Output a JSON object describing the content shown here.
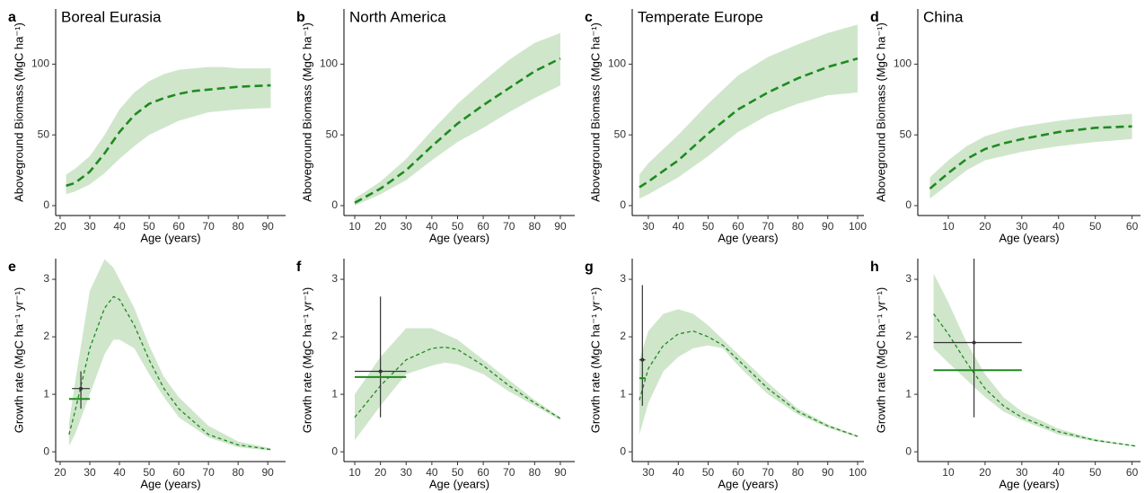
{
  "chart_data": [
    {
      "type": "line",
      "panel": "a",
      "title": "Boreal Eurasia",
      "xlabel": "Age (years)",
      "ylabel": "Aboveground Biomass (MgC ha⁻¹)",
      "x": [
        22,
        25,
        30,
        35,
        40,
        45,
        50,
        55,
        60,
        65,
        70,
        75,
        80,
        85,
        91
      ],
      "series": [
        {
          "color": "#1f8a1f",
          "band_color": "#cfe6cb",
          "values": [
            14,
            16,
            24,
            37,
            52,
            64,
            72,
            76,
            79,
            81,
            82,
            83,
            84,
            84.5,
            85
          ],
          "lower": [
            8,
            10,
            15,
            23,
            33,
            42,
            50,
            55,
            60,
            63,
            66,
            67,
            68,
            68.5,
            69
          ],
          "upper": [
            22,
            26,
            35,
            50,
            68,
            80,
            88,
            93,
            96,
            97,
            98,
            98,
            97,
            97,
            97
          ]
        }
      ],
      "xlim": [
        18.5,
        96
      ],
      "ylim": [
        -7,
        139
      ],
      "xticks": [
        20,
        30,
        40,
        50,
        60,
        70,
        80,
        90
      ],
      "yticks": [
        0,
        50,
        100
      ]
    },
    {
      "type": "line",
      "panel": "b",
      "title": "North America",
      "xlabel": "Age (years)",
      "ylabel": "Aboveground Biomass (MgC ha⁻¹)",
      "x": [
        10,
        20,
        30,
        40,
        50,
        60,
        70,
        80,
        90
      ],
      "series": [
        {
          "color": "#1f8a1f",
          "band_color": "#cfe6cb",
          "values": [
            2,
            12,
            25,
            42,
            58,
            71,
            83,
            95,
            104
          ],
          "lower": [
            0,
            8,
            18,
            32,
            45,
            55,
            66,
            76,
            85
          ],
          "upper": [
            5,
            17,
            33,
            53,
            72,
            88,
            103,
            115,
            122
          ]
        }
      ],
      "xlim": [
        5.8,
        95.6
      ],
      "ylim": [
        -7,
        139
      ],
      "xticks": [
        10,
        20,
        30,
        40,
        50,
        60,
        70,
        80,
        90
      ],
      "yticks": [
        0,
        50,
        100
      ]
    },
    {
      "type": "line",
      "panel": "c",
      "title": "Temperate Europe",
      "xlabel": "Age (years)",
      "ylabel": "Aboveground Biomass (MgC ha⁻¹)",
      "x": [
        27,
        30,
        40,
        50,
        60,
        70,
        80,
        90,
        100
      ],
      "series": [
        {
          "color": "#1f8a1f",
          "band_color": "#cfe6cb",
          "values": [
            13,
            17,
            32,
            51,
            68,
            80,
            90,
            98,
            104
          ],
          "lower": [
            5,
            8,
            20,
            35,
            52,
            64,
            72,
            78,
            80
          ],
          "upper": [
            22,
            30,
            50,
            72,
            92,
            105,
            114,
            122,
            128
          ]
        }
      ],
      "xlim": [
        24.6,
        102.1
      ],
      "ylim": [
        -7,
        139
      ],
      "xticks": [
        30,
        40,
        50,
        60,
        70,
        80,
        90,
        100
      ],
      "yticks": [
        0,
        50,
        100
      ]
    },
    {
      "type": "line",
      "panel": "d",
      "title": "China",
      "xlabel": "Age (years)",
      "ylabel": "Aboveground Biomass (MgC ha⁻¹)",
      "x": [
        5,
        10,
        15,
        20,
        25,
        30,
        40,
        50,
        60
      ],
      "series": [
        {
          "color": "#1f8a1f",
          "band_color": "#cfe6cb",
          "values": [
            12,
            23,
            33,
            40,
            44,
            47,
            52,
            55,
            56
          ],
          "lower": [
            5,
            15,
            25,
            32,
            35,
            38,
            42,
            45,
            47
          ],
          "upper": [
            20,
            32,
            42,
            49,
            53,
            56,
            60,
            63,
            65
          ]
        }
      ],
      "xlim": [
        1.7,
        62.3
      ],
      "ylim": [
        -7,
        139
      ],
      "xticks": [
        10,
        20,
        30,
        40,
        50,
        60
      ],
      "yticks": [
        0,
        50,
        100
      ]
    },
    {
      "type": "line",
      "panel": "e",
      "xlabel": "Age (years)",
      "ylabel": "Growth rate (MgC ha⁻¹ yr⁻¹)",
      "x": [
        23,
        25,
        30,
        35,
        38,
        40,
        45,
        50,
        55,
        60,
        70,
        80,
        91
      ],
      "series": [
        {
          "color": "#1f8a1f",
          "band_color": "#cfe6cb",
          "values": [
            0.3,
            0.7,
            1.8,
            2.5,
            2.7,
            2.65,
            2.2,
            1.6,
            1.1,
            0.75,
            0.3,
            0.12,
            0.04
          ],
          "lower": [
            0.1,
            0.3,
            1.0,
            1.7,
            1.95,
            1.95,
            1.8,
            1.35,
            0.95,
            0.6,
            0.25,
            0.08,
            0.02
          ],
          "upper": [
            0.5,
            1.2,
            2.8,
            3.35,
            3.2,
            3.0,
            2.5,
            1.85,
            1.3,
            0.95,
            0.45,
            0.18,
            0.06
          ]
        }
      ],
      "crosshairs": [
        {
          "color": "#333333",
          "x": 27,
          "xmin": 24,
          "xmax": 30,
          "y": 1.1,
          "ymin": 0.75,
          "ymax": 1.4
        },
        {
          "color": "#1f8a1f",
          "xmin": 23,
          "xmax": 30,
          "y": 0.92
        }
      ],
      "xlim": [
        18.5,
        96
      ],
      "ylim": [
        -0.17,
        3.36
      ],
      "xticks": [
        20,
        30,
        40,
        50,
        60,
        70,
        80,
        90
      ],
      "yticks": [
        0,
        1,
        2,
        3
      ]
    },
    {
      "type": "line",
      "panel": "f",
      "xlabel": "Age (years)",
      "ylabel": "Growth rate (MgC ha⁻¹ yr⁻¹)",
      "x": [
        10,
        20,
        30,
        40,
        45,
        50,
        60,
        70,
        80,
        90
      ],
      "series": [
        {
          "color": "#1f8a1f",
          "band_color": "#cfe6cb",
          "values": [
            0.6,
            1.15,
            1.6,
            1.8,
            1.82,
            1.78,
            1.5,
            1.15,
            0.85,
            0.58
          ],
          "lower": [
            0.2,
            0.8,
            1.35,
            1.5,
            1.55,
            1.52,
            1.35,
            1.05,
            0.8,
            0.55
          ],
          "upper": [
            1.0,
            1.65,
            2.15,
            2.15,
            2.05,
            1.95,
            1.6,
            1.25,
            0.9,
            0.6
          ]
        }
      ],
      "crosshairs": [
        {
          "color": "#333333",
          "x": 20,
          "xmin": 10,
          "xmax": 30,
          "y": 1.4,
          "ymin": 0.6,
          "ymax": 2.7
        },
        {
          "color": "#1f8a1f",
          "xmin": 10,
          "xmax": 30,
          "y": 1.3
        }
      ],
      "xlim": [
        5.8,
        95.6
      ],
      "ylim": [
        -0.17,
        3.36
      ],
      "xticks": [
        10,
        20,
        30,
        40,
        50,
        60,
        70,
        80,
        90
      ],
      "yticks": [
        0,
        1,
        2,
        3
      ]
    },
    {
      "type": "line",
      "panel": "g",
      "xlabel": "Age (years)",
      "ylabel": "Growth rate (MgC ha⁻¹ yr⁻¹)",
      "x": [
        27,
        30,
        35,
        40,
        45,
        50,
        55,
        60,
        70,
        80,
        90,
        100
      ],
      "series": [
        {
          "color": "#1f8a1f",
          "band_color": "#cfe6cb",
          "values": [
            0.9,
            1.45,
            1.85,
            2.05,
            2.1,
            2.0,
            1.85,
            1.6,
            1.1,
            0.7,
            0.45,
            0.27
          ],
          "lower": [
            0.3,
            0.85,
            1.4,
            1.65,
            1.8,
            1.85,
            1.8,
            1.5,
            1.0,
            0.65,
            0.42,
            0.25
          ],
          "upper": [
            1.6,
            2.1,
            2.4,
            2.48,
            2.4,
            2.2,
            1.95,
            1.7,
            1.2,
            0.75,
            0.48,
            0.28
          ]
        }
      ],
      "crosshairs": [
        {
          "color": "#333333",
          "x": 28,
          "xmin": 27,
          "xmax": 29,
          "y": 1.6,
          "ymin": 0.8,
          "ymax": 2.9
        },
        {
          "color": "#1f8a1f",
          "xmin": 27,
          "xmax": 29,
          "y": 1.28
        }
      ],
      "xlim": [
        24.6,
        102.1
      ],
      "ylim": [
        -0.17,
        3.36
      ],
      "xticks": [
        30,
        40,
        50,
        60,
        70,
        80,
        90,
        100
      ],
      "yticks": [
        0,
        1,
        2,
        3
      ]
    },
    {
      "type": "line",
      "panel": "h",
      "xlabel": "Age (years)",
      "ylabel": "Growth rate (MgC ha⁻¹ yr⁻¹)",
      "x": [
        6,
        10,
        15,
        20,
        25,
        30,
        40,
        50,
        61
      ],
      "series": [
        {
          "color": "#1f8a1f",
          "band_color": "#cfe6cb",
          "values": [
            2.4,
            2.05,
            1.55,
            1.1,
            0.8,
            0.6,
            0.35,
            0.2,
            0.1
          ],
          "lower": [
            1.8,
            1.55,
            1.25,
            0.95,
            0.7,
            0.55,
            0.3,
            0.18,
            0.09
          ],
          "upper": [
            3.1,
            2.6,
            1.9,
            1.35,
            0.95,
            0.7,
            0.4,
            0.22,
            0.11
          ]
        }
      ],
      "crosshairs": [
        {
          "color": "#333333",
          "x": 17,
          "xmin": 6,
          "xmax": 30,
          "y": 1.9,
          "ymin": 0.6,
          "ymax": 3.36
        },
        {
          "color": "#1f8a1f",
          "xmin": 6,
          "xmax": 30,
          "y": 1.42
        }
      ],
      "xlim": [
        1.7,
        62.3
      ],
      "ylim": [
        -0.17,
        3.36
      ],
      "xticks": [
        10,
        20,
        30,
        40,
        50,
        60
      ],
      "yticks": [
        0,
        1,
        2,
        3
      ]
    }
  ]
}
